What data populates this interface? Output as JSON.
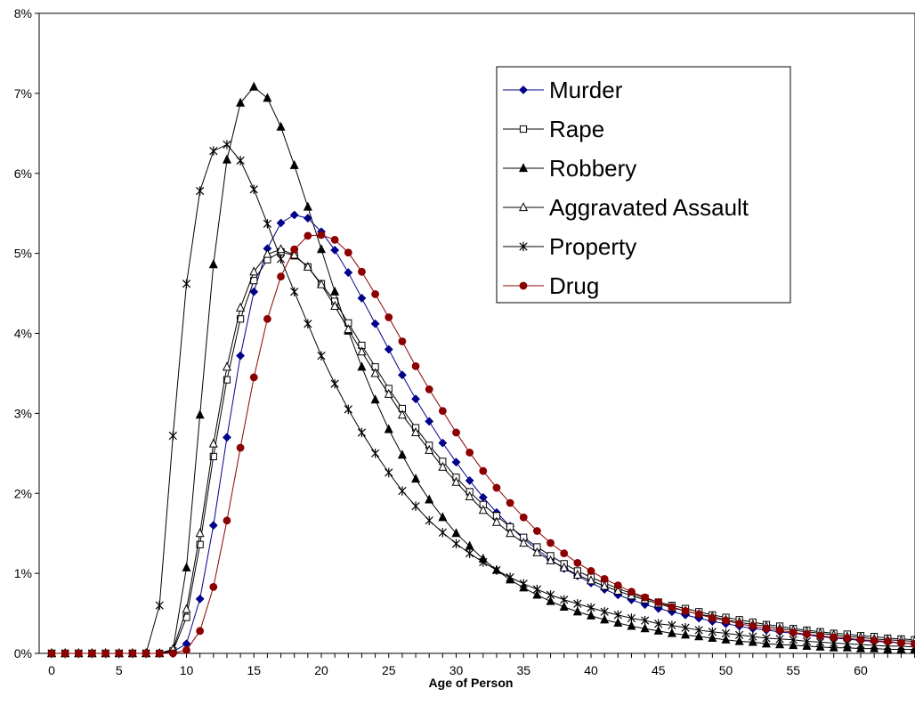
{
  "chart_data": {
    "type": "line",
    "title": "",
    "xlabel": "Age of Person",
    "ylabel": "",
    "xlim": [
      0,
      64
    ],
    "ylim": [
      0,
      8
    ],
    "x_ticks": [
      0,
      5,
      10,
      15,
      20,
      25,
      30,
      35,
      40,
      45,
      50,
      55,
      60
    ],
    "y_ticks": [
      "0%",
      "1%",
      "2%",
      "3%",
      "4%",
      "5%",
      "6%",
      "7%",
      "8%"
    ],
    "y_tick_values": [
      0,
      1,
      2,
      3,
      4,
      5,
      6,
      7,
      8
    ],
    "grid": false,
    "legend_position": "top-right",
    "x": [
      0,
      1,
      2,
      3,
      4,
      5,
      6,
      7,
      8,
      9,
      10,
      11,
      12,
      13,
      14,
      15,
      16,
      17,
      18,
      19,
      20,
      21,
      22,
      23,
      24,
      25,
      26,
      27,
      28,
      29,
      30,
      31,
      32,
      33,
      34,
      35,
      36,
      37,
      38,
      39,
      40,
      41,
      42,
      43,
      44,
      45,
      46,
      47,
      48,
      49,
      50,
      51,
      52,
      53,
      54,
      55,
      56,
      57,
      58,
      59,
      60,
      61,
      62,
      63,
      64
    ],
    "series": [
      {
        "name": "Murder",
        "color": "#00008B",
        "marker": "diamond-filled",
        "values": [
          0,
          0,
          0,
          0,
          0,
          0,
          0,
          0,
          0,
          0.02,
          0.12,
          0.68,
          1.6,
          2.7,
          3.72,
          4.52,
          5.06,
          5.38,
          5.48,
          5.44,
          5.27,
          5.04,
          4.76,
          4.44,
          4.12,
          3.8,
          3.48,
          3.18,
          2.9,
          2.63,
          2.39,
          2.16,
          1.95,
          1.76,
          1.59,
          1.43,
          1.3,
          1.17,
          1.06,
          0.97,
          0.88,
          0.8,
          0.73,
          0.67,
          0.61,
          0.56,
          0.52,
          0.48,
          0.44,
          0.4,
          0.37,
          0.34,
          0.31,
          0.29,
          0.27,
          0.25,
          0.23,
          0.21,
          0.19,
          0.18,
          0.16,
          0.15,
          0.14,
          0.13,
          0.12
        ]
      },
      {
        "name": "Rape",
        "color": "#000000",
        "marker": "square-open",
        "values": [
          0,
          0,
          0,
          0,
          0,
          0,
          0,
          0,
          0,
          0.03,
          0.45,
          1.36,
          2.46,
          3.42,
          4.18,
          4.66,
          4.92,
          5.02,
          4.97,
          4.83,
          4.62,
          4.4,
          4.13,
          3.85,
          3.58,
          3.31,
          3.06,
          2.82,
          2.6,
          2.4,
          2.2,
          2.02,
          1.86,
          1.72,
          1.58,
          1.45,
          1.33,
          1.22,
          1.12,
          1.03,
          0.95,
          0.88,
          0.81,
          0.75,
          0.69,
          0.64,
          0.6,
          0.56,
          0.52,
          0.48,
          0.45,
          0.42,
          0.39,
          0.36,
          0.34,
          0.31,
          0.29,
          0.27,
          0.25,
          0.24,
          0.22,
          0.21,
          0.19,
          0.18,
          0.17
        ]
      },
      {
        "name": "Robbery",
        "color": "#000000",
        "marker": "triangle-filled",
        "values": [
          0,
          0,
          0,
          0,
          0,
          0,
          0,
          0,
          0,
          0.05,
          1.07,
          2.98,
          4.86,
          6.17,
          6.88,
          7.08,
          6.94,
          6.58,
          6.1,
          5.58,
          5.05,
          4.52,
          4.03,
          3.58,
          3.17,
          2.8,
          2.48,
          2.18,
          1.92,
          1.7,
          1.5,
          1.34,
          1.18,
          1.04,
          0.92,
          0.82,
          0.73,
          0.65,
          0.58,
          0.52,
          0.47,
          0.42,
          0.38,
          0.34,
          0.31,
          0.28,
          0.25,
          0.23,
          0.21,
          0.19,
          0.17,
          0.15,
          0.14,
          0.12,
          0.11,
          0.1,
          0.09,
          0.08,
          0.07,
          0.07,
          0.06,
          0.06,
          0.05,
          0.05,
          0.05
        ]
      },
      {
        "name": "Aggravated Assault",
        "color": "#000000",
        "marker": "triangle-open",
        "values": [
          0,
          0,
          0,
          0,
          0,
          0,
          0,
          0,
          0,
          0.05,
          0.55,
          1.5,
          2.62,
          3.58,
          4.32,
          4.77,
          4.99,
          5.05,
          4.98,
          4.83,
          4.61,
          4.34,
          4.05,
          3.77,
          3.5,
          3.24,
          2.98,
          2.76,
          2.54,
          2.33,
          2.14,
          1.96,
          1.79,
          1.64,
          1.5,
          1.38,
          1.26,
          1.16,
          1.07,
          0.98,
          0.91,
          0.84,
          0.78,
          0.72,
          0.67,
          0.62,
          0.57,
          0.53,
          0.49,
          0.46,
          0.42,
          0.39,
          0.36,
          0.34,
          0.31,
          0.29,
          0.27,
          0.25,
          0.23,
          0.21,
          0.2,
          0.18,
          0.17,
          0.16,
          0.15
        ]
      },
      {
        "name": "Property",
        "color": "#000000",
        "marker": "star",
        "values": [
          0,
          0,
          0,
          0,
          0,
          0,
          0,
          0,
          0.6,
          2.72,
          4.62,
          5.78,
          6.28,
          6.36,
          6.16,
          5.8,
          5.37,
          4.93,
          4.52,
          4.12,
          3.72,
          3.37,
          3.05,
          2.76,
          2.5,
          2.26,
          2.03,
          1.84,
          1.66,
          1.51,
          1.37,
          1.25,
          1.14,
          1.04,
          0.95,
          0.87,
          0.8,
          0.73,
          0.67,
          0.62,
          0.57,
          0.52,
          0.48,
          0.44,
          0.41,
          0.37,
          0.35,
          0.32,
          0.29,
          0.27,
          0.25,
          0.23,
          0.21,
          0.19,
          0.18,
          0.17,
          0.15,
          0.14,
          0.13,
          0.12,
          0.11,
          0.1,
          0.09,
          0.09,
          0.08
        ]
      },
      {
        "name": "Drug",
        "color": "#8B0000",
        "marker": "circle-filled",
        "values": [
          0,
          0,
          0,
          0,
          0,
          0,
          0,
          0,
          0,
          0,
          0.04,
          0.28,
          0.83,
          1.66,
          2.57,
          3.45,
          4.18,
          4.71,
          5.05,
          5.22,
          5.23,
          5.17,
          5.01,
          4.77,
          4.49,
          4.2,
          3.9,
          3.59,
          3.3,
          3.03,
          2.76,
          2.51,
          2.28,
          2.07,
          1.88,
          1.7,
          1.53,
          1.38,
          1.25,
          1.13,
          1.03,
          0.93,
          0.85,
          0.77,
          0.7,
          0.64,
          0.58,
          0.53,
          0.49,
          0.44,
          0.41,
          0.37,
          0.34,
          0.31,
          0.29,
          0.26,
          0.24,
          0.22,
          0.2,
          0.19,
          0.17,
          0.16,
          0.15,
          0.13,
          0.12
        ]
      }
    ]
  }
}
